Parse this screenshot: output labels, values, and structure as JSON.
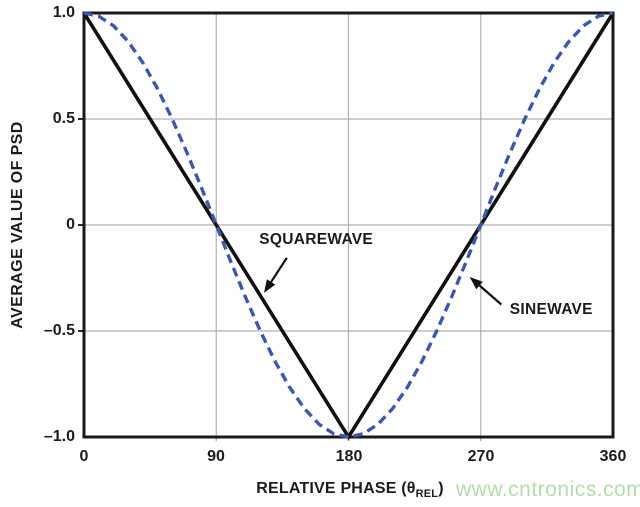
{
  "watermark": {
    "text": "www.cntronics.com",
    "color": "#b4ddab"
  },
  "chart_data": {
    "type": "line",
    "title": "",
    "xlabel": "RELATIVE PHASE (θREL)",
    "xlabel_parts": {
      "prefix": "RELATIVE PHASE (θ",
      "sub": "REL",
      "suffix": ")"
    },
    "ylabel": "AVERAGE VALUE OF PSD",
    "xlim": [
      0,
      360
    ],
    "ylim": [
      -1,
      1
    ],
    "x_ticks": [
      0,
      90,
      180,
      270,
      360
    ],
    "x_tick_labels": [
      "0",
      "90",
      "180",
      "270",
      "360"
    ],
    "y_ticks": [
      1.0,
      0.5,
      0,
      -0.5,
      -1.0
    ],
    "y_tick_labels": [
      "1.0",
      "0.5",
      "0",
      "–0.5",
      "–1.0"
    ],
    "grid": true,
    "grid_color": "#b0b0b0",
    "frame_color": "#1a1a1a",
    "legend_position": "none",
    "series": [
      {
        "name": "SQUAREWAVE",
        "color": "#111111",
        "style": "solid",
        "width": 3.6,
        "x": [
          0,
          180,
          360
        ],
        "y": [
          1,
          -1,
          1
        ]
      },
      {
        "name": "SINEWAVE",
        "color": "#3c58a8",
        "style": "dashed",
        "width": 3.4,
        "x": [
          0,
          10,
          20,
          30,
          40,
          50,
          60,
          70,
          80,
          90,
          100,
          110,
          120,
          130,
          140,
          150,
          160,
          170,
          180,
          190,
          200,
          210,
          220,
          230,
          240,
          250,
          260,
          270,
          280,
          290,
          300,
          310,
          320,
          330,
          340,
          350,
          360
        ],
        "y": [
          1,
          0.985,
          0.94,
          0.866,
          0.766,
          0.643,
          0.5,
          0.342,
          0.174,
          0,
          -0.174,
          -0.342,
          -0.5,
          -0.643,
          -0.766,
          -0.866,
          -0.94,
          -0.985,
          -1,
          -0.985,
          -0.94,
          -0.866,
          -0.766,
          -0.643,
          -0.5,
          -0.342,
          -0.174,
          0,
          0.174,
          0.342,
          0.5,
          0.643,
          0.766,
          0.866,
          0.94,
          0.985,
          1
        ]
      }
    ],
    "annotations": [
      {
        "label": "SQUAREWAVE",
        "label_x": 158,
        "label_y": -0.07,
        "arrow_from_x": 138,
        "arrow_from_y": -0.155,
        "arrow_to_x": 122.5,
        "arrow_to_y": -0.32
      },
      {
        "label": "SINEWAVE",
        "label_x": 318,
        "label_y": -0.4,
        "arrow_from_x": 284,
        "arrow_from_y": -0.375,
        "arrow_to_x": 262.5,
        "arrow_to_y": -0.245
      }
    ]
  }
}
